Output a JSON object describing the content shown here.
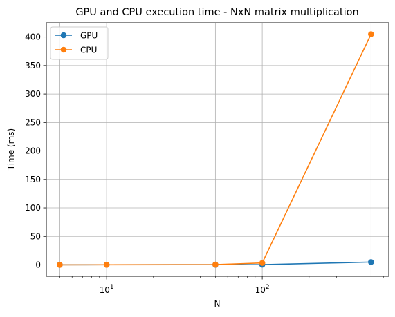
{
  "chart_data": {
    "type": "line",
    "title": "GPU and CPU execution time - NxN matrix multiplication",
    "xlabel": "N",
    "ylabel": "Time (ms)",
    "xscale": "log",
    "xlim": [
      4.1,
      650
    ],
    "ylim": [
      -20,
      425
    ],
    "grid": true,
    "legend_position": "top-left",
    "x": [
      5,
      10,
      50,
      100,
      500
    ],
    "x_ticks": [
      {
        "value": 10,
        "base": "10",
        "exp": "1"
      },
      {
        "value": 100,
        "base": "10",
        "exp": "2"
      }
    ],
    "y_ticks": [
      0,
      50,
      100,
      150,
      200,
      250,
      300,
      350,
      400
    ],
    "series": [
      {
        "name": "GPU",
        "color": "#1f77b4",
        "values": [
          0.2,
          0.3,
          0.4,
          0.5,
          5.0
        ]
      },
      {
        "name": "CPU",
        "color": "#ff7f0e",
        "values": [
          0.1,
          0.2,
          0.5,
          3.5,
          405.0
        ]
      }
    ]
  }
}
